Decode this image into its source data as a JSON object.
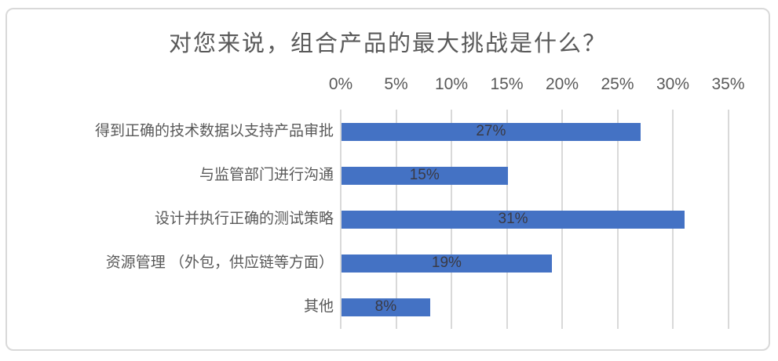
{
  "chart_data": {
    "type": "bar",
    "orientation": "horizontal",
    "title": "对您来说，组合产品的最大挑战是什么？",
    "categories": [
      "得到正确的技术数据以支持产品审批",
      "与监管部门进行沟通",
      "设计并执行正确的测试策略",
      "资源管理 （外包，供应链等方面）",
      "其他"
    ],
    "values": [
      27,
      15,
      31,
      19,
      8
    ],
    "value_labels": [
      "27%",
      "15%",
      "31%",
      "19%",
      "8%"
    ],
    "x_ticks": [
      "0%",
      "5%",
      "10%",
      "15%",
      "20%",
      "25%",
      "30%",
      "35%"
    ],
    "x_tick_values": [
      0,
      5,
      10,
      15,
      20,
      25,
      30,
      35
    ],
    "xlim": [
      0,
      35
    ],
    "axis_position": "top",
    "grid": "vertical",
    "legend": "none",
    "colors": {
      "bar": "#4472c4",
      "title_text": "#595959",
      "axis_text": "#595959",
      "category_text": "#595959",
      "data_label_text": "#3a3a44",
      "gridline": "#d9d9d9",
      "frame_border": "#d9d9d9",
      "background": "#ffffff"
    }
  }
}
